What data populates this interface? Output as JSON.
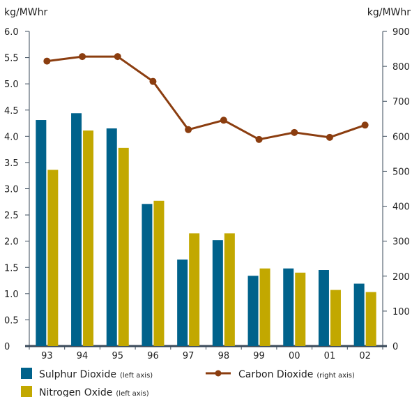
{
  "chart_data": {
    "type": "bar",
    "categories": [
      "93",
      "94",
      "95",
      "96",
      "97",
      "98",
      "99",
      "00",
      "01",
      "02"
    ],
    "series": [
      {
        "name": "Sulphur Dioxide",
        "axis": "left",
        "kind": "bar",
        "color": "#00628b",
        "values": [
          4.31,
          4.44,
          4.15,
          2.71,
          1.65,
          2.02,
          1.34,
          1.48,
          1.45,
          1.19
        ]
      },
      {
        "name": "Nitrogen Oxide",
        "axis": "left",
        "kind": "bar",
        "color": "#c2a800",
        "values": [
          3.36,
          4.11,
          3.78,
          2.77,
          2.15,
          2.15,
          1.48,
          1.4,
          1.07,
          1.03
        ]
      },
      {
        "name": "Carbon Dioxide",
        "axis": "right",
        "kind": "line",
        "color": "#8b3d0f",
        "values": [
          815,
          828,
          828,
          757,
          619,
          646,
          591,
          611,
          597,
          632
        ]
      }
    ],
    "y_left": {
      "label": "kg/MWhr",
      "range": [
        0,
        6.0
      ],
      "ticks": [
        "0",
        "0.5",
        "1.0",
        "1.5",
        "2.0",
        "2.5",
        "3.0",
        "3.5",
        "4.0",
        "4.5",
        "5.0",
        "5.5",
        "6.0"
      ]
    },
    "y_right": {
      "label": "kg/MWhr",
      "range": [
        0,
        900
      ],
      "ticks": [
        "0",
        "100",
        "200",
        "300",
        "400",
        "500",
        "600",
        "700",
        "800",
        "900"
      ]
    },
    "legend": {
      "placement": "bottom",
      "items": [
        {
          "name": "Sulphur Dioxide",
          "note": "(left axis)",
          "color": "#00628b",
          "marker": "square"
        },
        {
          "name": "Carbon Dioxide",
          "note": "(right axis)",
          "color": "#8b3d0f",
          "marker": "line-dot"
        },
        {
          "name": "Nitrogen Oxide",
          "note": "(left axis)",
          "color": "#c2a800",
          "marker": "square"
        }
      ]
    },
    "grid": false,
    "axis_color": "#3a4a5a"
  }
}
